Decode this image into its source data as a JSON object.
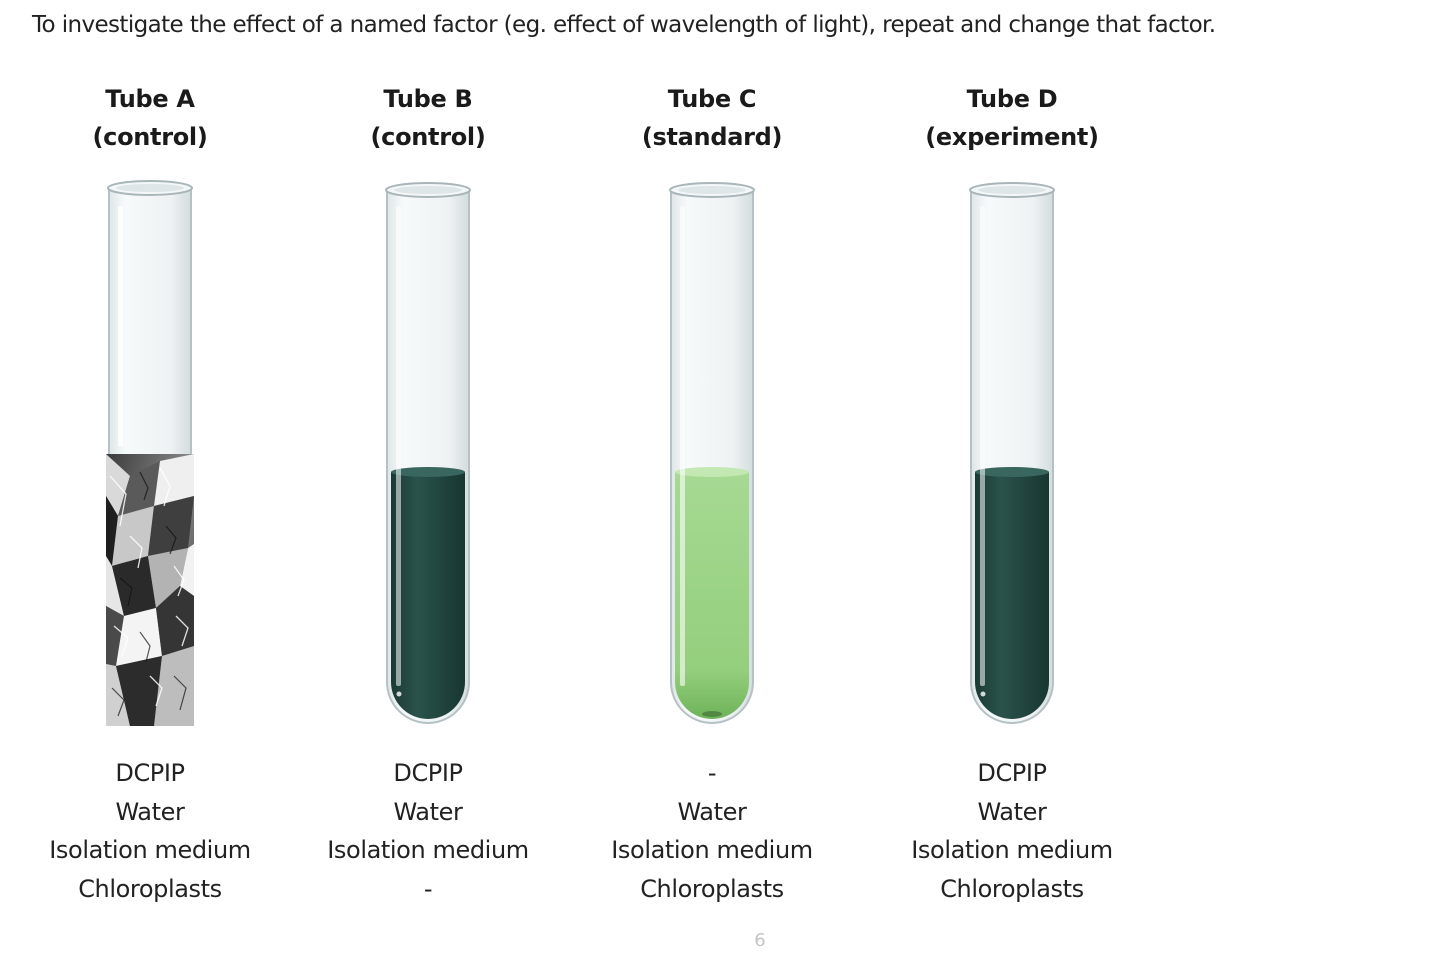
{
  "intro_text": "To investigate the effect of a named factor (eg. effect of wavelength of light), repeat and change that factor.",
  "tubes": [
    {
      "name": "Tube A",
      "role": "(control)",
      "fill": "foil-wrapped",
      "contents": [
        "DCPIP",
        "Water",
        "Isolation medium",
        "Chloroplasts"
      ]
    },
    {
      "name": "Tube B",
      "role": "(control)",
      "fill": "dark-green",
      "contents": [
        "DCPIP",
        "Water",
        "Isolation medium",
        "-"
      ]
    },
    {
      "name": "Tube C",
      "role": "(standard)",
      "fill": "light-green",
      "contents": [
        "-",
        "Water",
        "Isolation medium",
        "Chloroplasts"
      ]
    },
    {
      "name": "Tube D",
      "role": "(experiment)",
      "fill": "dark-green",
      "contents": [
        "DCPIP",
        "Water",
        "Isolation medium",
        "Chloroplasts"
      ]
    }
  ],
  "colors": {
    "dark_liquid": "#244a44",
    "light_liquid": "#9fd48a",
    "glass": "#eef3f4",
    "glass_edge": "#b8c4c7"
  },
  "page_number": "6"
}
